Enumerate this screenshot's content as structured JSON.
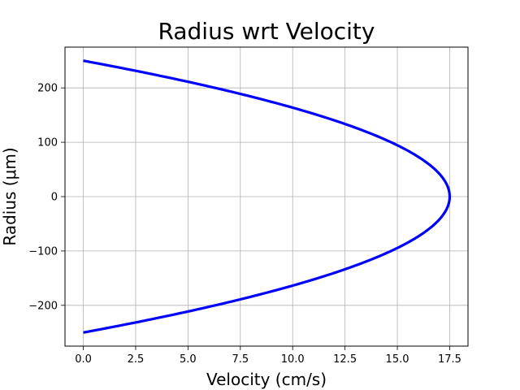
{
  "chart_data": {
    "type": "line",
    "title": "Radius wrt Velocity",
    "xlabel": "Velocity (cm/s)",
    "ylabel": "Radius (μm)",
    "xlim": [
      -0.875,
      18.375
    ],
    "ylim": [
      -275,
      275
    ],
    "xticks": [
      0,
      2.5,
      5,
      7.5,
      10,
      12.5,
      15,
      17.5
    ],
    "xtick_labels": [
      "0.0",
      "2.5",
      "5.0",
      "7.5",
      "10.0",
      "12.5",
      "15.0",
      "17.5"
    ],
    "yticks": [
      -200,
      -100,
      0,
      100,
      200
    ],
    "ytick_labels": [
      "−200",
      "−100",
      "0",
      "100",
      "200"
    ],
    "grid": true,
    "series": [
      {
        "color": "#0000ff",
        "x": [
          0.0,
          2.5,
          5.0,
          7.5,
          10.0,
          12.5,
          15.0,
          16.5,
          17.5,
          16.5,
          15.0,
          12.5,
          10.0,
          7.5,
          5.0,
          2.5,
          0.0
        ],
        "y": [
          250,
          231.5,
          211.3,
          189.0,
          163.7,
          133.6,
          94.5,
          59.8,
          0,
          -59.8,
          -94.5,
          -133.6,
          -163.7,
          -189.0,
          -211.3,
          -231.5,
          -250
        ]
      }
    ]
  }
}
